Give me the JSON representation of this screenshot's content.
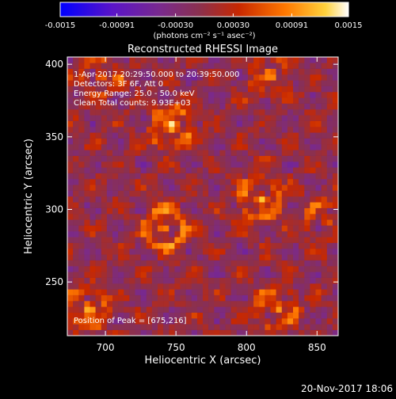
{
  "chart_data": {
    "type": "heatmap",
    "title": "Reconstructed RHESSI Image",
    "xlabel": "Heliocentric X (arcsec)",
    "ylabel": "Heliocentric Y (arcsec)",
    "xlim": [
      673,
      865
    ],
    "ylim": [
      213,
      405
    ],
    "x_ticks": [
      {
        "value": 700,
        "label": "700"
      },
      {
        "value": 750,
        "label": "750"
      },
      {
        "value": 800,
        "label": "800"
      },
      {
        "value": 850,
        "label": "850"
      }
    ],
    "y_ticks": [
      {
        "value": 250,
        "label": "250"
      },
      {
        "value": 300,
        "label": "300"
      },
      {
        "value": 350,
        "label": "350"
      },
      {
        "value": 400,
        "label": "400"
      }
    ],
    "colorbar": {
      "range": [
        -0.0015,
        0.0015
      ],
      "tick_labels": [
        "-0.0015",
        "-0.00091",
        "-0.00030",
        "0.00030",
        "0.00091",
        "0.0015"
      ],
      "tick_values": [
        -0.0015,
        -0.00091,
        -0.0003,
        0.0003,
        0.00091,
        0.0015
      ],
      "unit_label": "(photons cm⁻² s⁻¹ asec⁻²)",
      "colors": [
        "#0000ff",
        "#5a14c8",
        "#7a2a8c",
        "#8a3050",
        "#c82800",
        "#ff7800",
        "#ffd23c",
        "#ffffff"
      ]
    },
    "annotations": {
      "lines": [
        "1-Apr-2017 20:29:50.000 to 20:39:50.000",
        "Detectors: 3F 6F, Att 0",
        "Energy Range: 25.0 - 50.0 keV",
        "Clean    Total counts: 9.93E+03"
      ],
      "peak": "Position of Peak = [675,216]"
    },
    "peak_position": [
      675,
      216
    ],
    "sources": [
      {
        "x": 745,
        "y": 355,
        "peak": 0.0014
      },
      {
        "x": 740,
        "y": 285,
        "peak": 0.0014
      },
      {
        "x": 808,
        "y": 305,
        "peak": 0.0013
      },
      {
        "x": 815,
        "y": 390,
        "peak": 0.0009
      },
      {
        "x": 820,
        "y": 230,
        "peak": 0.0011
      },
      {
        "x": 686,
        "y": 230,
        "peak": 0.0012
      },
      {
        "x": 695,
        "y": 390,
        "peak": 0.0008
      },
      {
        "x": 855,
        "y": 290,
        "peak": 0.0009
      }
    ]
  },
  "footer": {
    "timestamp": "20-Nov-2017 18:06"
  }
}
